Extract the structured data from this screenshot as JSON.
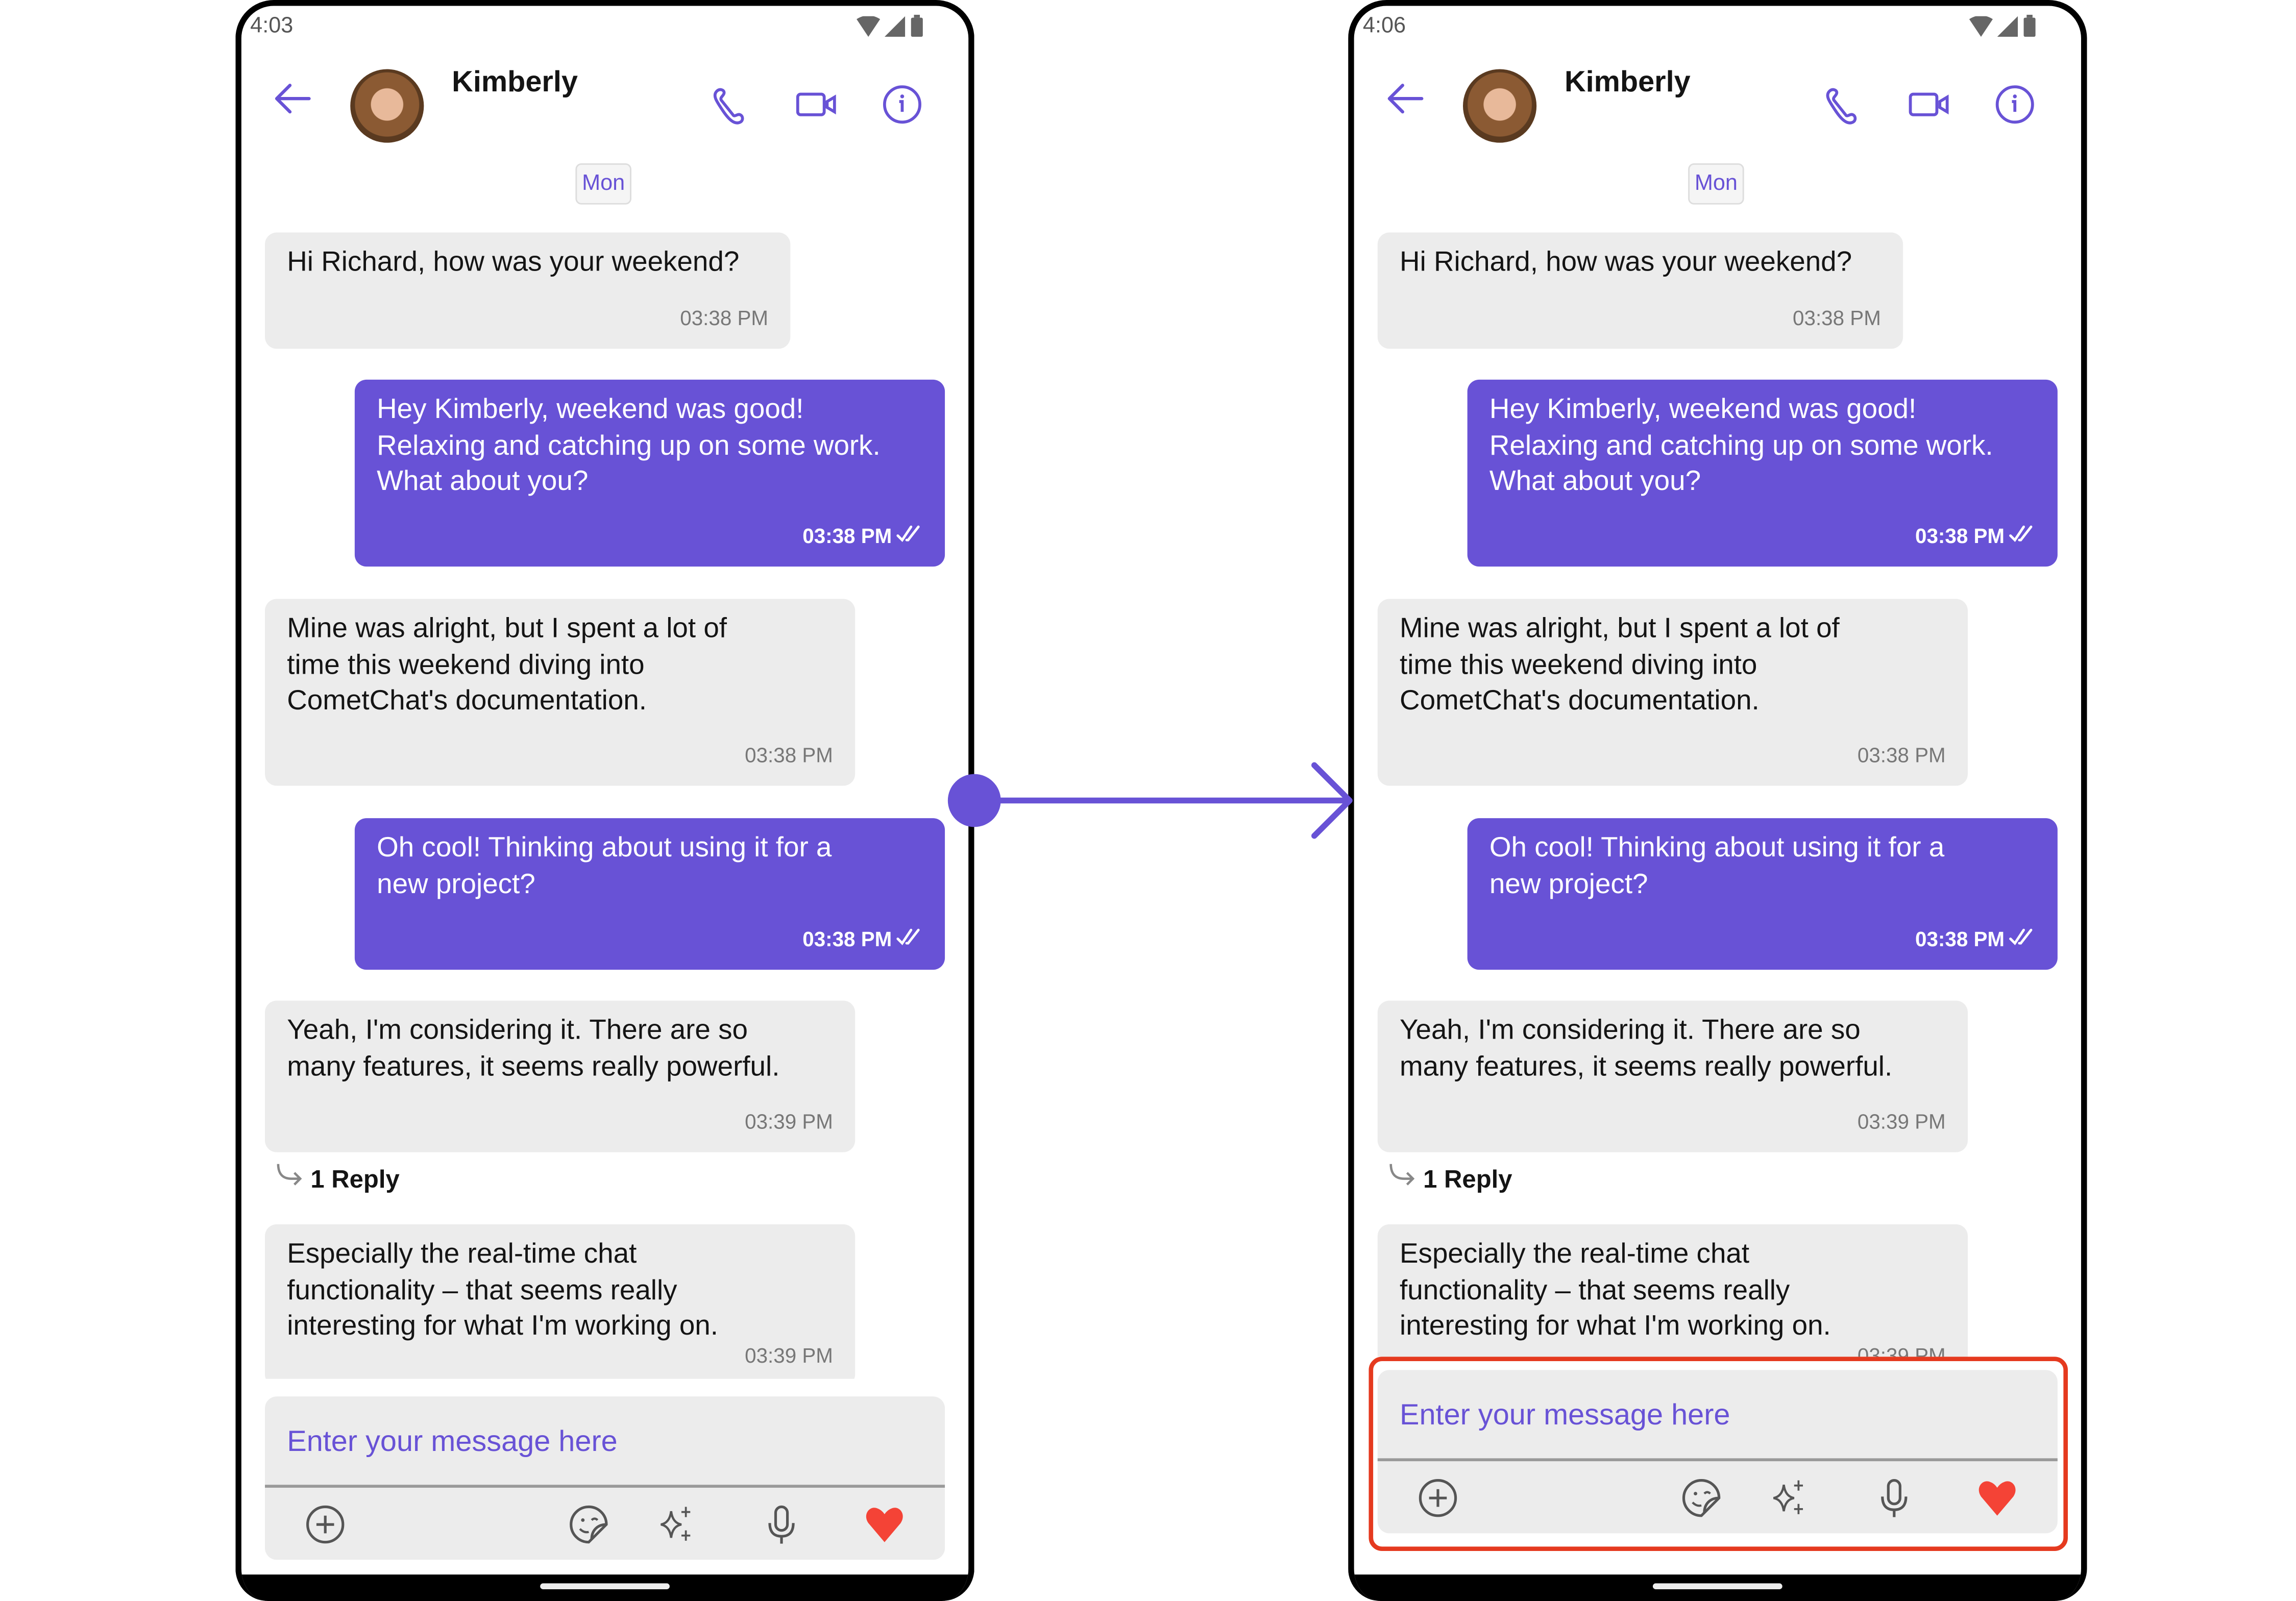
{
  "colors": {
    "accent": "#6852d6",
    "incoming_bubble": "#ececec",
    "heart": "#f44336",
    "highlight": "#e53a1f"
  },
  "phones": [
    {
      "status_time": "4:03",
      "label": "before"
    },
    {
      "status_time": "4:06",
      "label": "after",
      "highlighted": "composer"
    }
  ],
  "header": {
    "name": "Kimberly",
    "icons": [
      "back-arrow-icon",
      "avatar",
      "phone-call-icon",
      "video-call-icon",
      "info-icon"
    ]
  },
  "date_chip": "Mon",
  "messages": [
    {
      "dir": "in",
      "lines": [
        "Hi Richard, how was your weekend?"
      ],
      "time": "03:38 PM"
    },
    {
      "dir": "out",
      "lines": [
        "Hey Kimberly, weekend was good!",
        "Relaxing and catching up on some work.",
        "What about you?"
      ],
      "time": "03:38 PM",
      "receipt": "read"
    },
    {
      "dir": "in",
      "lines": [
        "Mine was alright, but I spent a lot of",
        "time this weekend diving into",
        "CometChat's documentation."
      ],
      "time": "03:38 PM"
    },
    {
      "dir": "out",
      "lines": [
        "Oh cool! Thinking about using it for a",
        "new project?"
      ],
      "time": "03:38 PM",
      "receipt": "read"
    },
    {
      "dir": "in",
      "lines": [
        "Yeah, I'm considering it.  There are so",
        "many features, it seems really powerful."
      ],
      "time": "03:39 PM",
      "replies": "1 Reply"
    },
    {
      "dir": "in",
      "lines": [
        "Especially the real-time chat",
        "functionality – that seems really",
        "interesting for what I'm working on."
      ],
      "time": "03:39 PM"
    }
  ],
  "composer": {
    "placeholder": "Enter your message here",
    "icons": [
      "add-attachment-icon",
      "sticker-icon",
      "ai-sparkle-icon",
      "microphone-icon",
      "heart-icon"
    ]
  }
}
